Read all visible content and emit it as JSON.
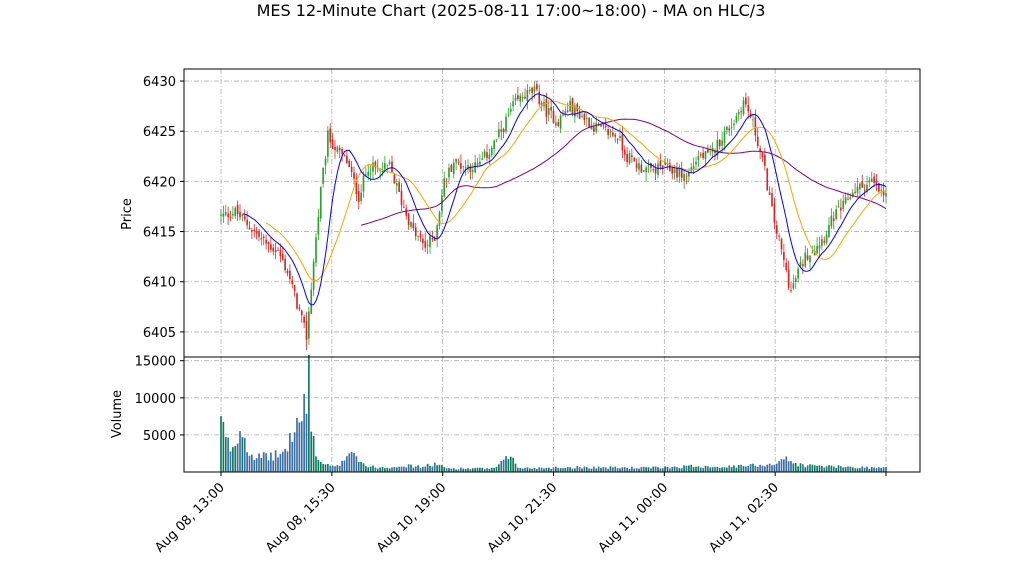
{
  "chart_data": {
    "type": "candlestick",
    "title": "MES 12-Minute Chart (2025-08-11 17:00~18:00) - MA on HLC/3",
    "price_panel": {
      "ylabel": "Price",
      "ylim": [
        6402.5,
        6431.2
      ],
      "yticks": [
        6405,
        6410,
        6415,
        6420,
        6425,
        6430
      ],
      "grid": true
    },
    "volume_panel": {
      "ylabel": "Volume",
      "ylim": [
        0,
        15500
      ],
      "yticks": [
        5000,
        10000,
        15000
      ],
      "grid": true
    },
    "x_tick_labels": [
      "Aug 08, 13:00",
      "Aug 08, 15:30",
      "Aug 10, 19:00",
      "Aug 10, 21:30",
      "Aug 11, 00:00",
      "Aug 11, 02:30"
    ],
    "colors": {
      "up": "#2ca02c",
      "down": "#d62728",
      "vol_up": "#0b7a5e",
      "vol_down": "#3a6ea5",
      "ma_fast": "#0000ff",
      "ma_mid": "#ffa500",
      "ma_slow": "#800080",
      "grid": "#b0b0b0"
    },
    "price_anchors": [
      [
        0,
        6416.5
      ],
      [
        6,
        6417
      ],
      [
        12,
        6415.5
      ],
      [
        18,
        6414
      ],
      [
        24,
        6413
      ],
      [
        28,
        6411
      ],
      [
        33,
        6407
      ],
      [
        36,
        6404.5
      ],
      [
        39,
        6412
      ],
      [
        42,
        6419
      ],
      [
        45,
        6424.5
      ],
      [
        49,
        6423
      ],
      [
        53,
        6422
      ],
      [
        58,
        6418.5
      ],
      [
        62,
        6421.5
      ],
      [
        67,
        6421
      ],
      [
        71,
        6421.5
      ],
      [
        76,
        6418
      ],
      [
        81,
        6415
      ],
      [
        86,
        6413.5
      ],
      [
        90,
        6414.5
      ],
      [
        94,
        6420
      ],
      [
        98,
        6422
      ],
      [
        103,
        6421.5
      ],
      [
        108,
        6421.5
      ],
      [
        113,
        6423
      ],
      [
        118,
        6425
      ],
      [
        123,
        6427.5
      ],
      [
        127,
        6428.5
      ],
      [
        132,
        6429
      ],
      [
        137,
        6427
      ],
      [
        142,
        6426
      ],
      [
        147,
        6427.5
      ],
      [
        152,
        6426.5
      ],
      [
        157,
        6425.5
      ],
      [
        162,
        6425
      ],
      [
        167,
        6424.5
      ],
      [
        171,
        6422.5
      ],
      [
        176,
        6421.5
      ],
      [
        181,
        6421
      ],
      [
        186,
        6421.5
      ],
      [
        191,
        6421
      ],
      [
        196,
        6420.5
      ],
      [
        201,
        6422.5
      ],
      [
        206,
        6422.5
      ],
      [
        211,
        6424.5
      ],
      [
        216,
        6426
      ],
      [
        220,
        6428
      ],
      [
        223,
        6426.5
      ],
      [
        226,
        6424
      ],
      [
        229,
        6421
      ],
      [
        232,
        6417
      ],
      [
        235,
        6414
      ],
      [
        238,
        6411
      ],
      [
        240,
        6409
      ],
      [
        243,
        6411
      ],
      [
        246,
        6412.5
      ],
      [
        250,
        6413.5
      ],
      [
        254,
        6414.5
      ],
      [
        258,
        6416.5
      ],
      [
        262,
        6417.5
      ],
      [
        266,
        6419
      ],
      [
        270,
        6419.5
      ],
      [
        274,
        6420
      ],
      [
        277,
        6419
      ],
      [
        280,
        6418.5
      ]
    ],
    "volume_anchors": [
      [
        0,
        6800
      ],
      [
        2,
        4500
      ],
      [
        4,
        3200
      ],
      [
        6,
        3800
      ],
      [
        9,
        6200
      ],
      [
        12,
        2500
      ],
      [
        16,
        2000
      ],
      [
        20,
        2100
      ],
      [
        24,
        2300
      ],
      [
        27,
        2800
      ],
      [
        30,
        5200
      ],
      [
        33,
        6800
      ],
      [
        35,
        8200
      ],
      [
        36,
        9000
      ],
      [
        37,
        14200
      ],
      [
        38,
        7000
      ],
      [
        40,
        2000
      ],
      [
        44,
        900
      ],
      [
        50,
        700
      ],
      [
        55,
        3500
      ],
      [
        58,
        1600
      ],
      [
        62,
        700
      ],
      [
        70,
        600
      ],
      [
        75,
        900
      ],
      [
        85,
        700
      ],
      [
        90,
        1100
      ],
      [
        95,
        500
      ],
      [
        115,
        450
      ],
      [
        123,
        2400
      ],
      [
        125,
        500
      ],
      [
        150,
        650
      ],
      [
        180,
        550
      ],
      [
        200,
        800
      ],
      [
        215,
        700
      ],
      [
        233,
        1100
      ],
      [
        237,
        1900
      ],
      [
        240,
        1300
      ],
      [
        245,
        900
      ],
      [
        260,
        700
      ],
      [
        280,
        550
      ]
    ],
    "ma_periods": {
      "fast": 10,
      "mid": 20,
      "slow": 60
    }
  }
}
